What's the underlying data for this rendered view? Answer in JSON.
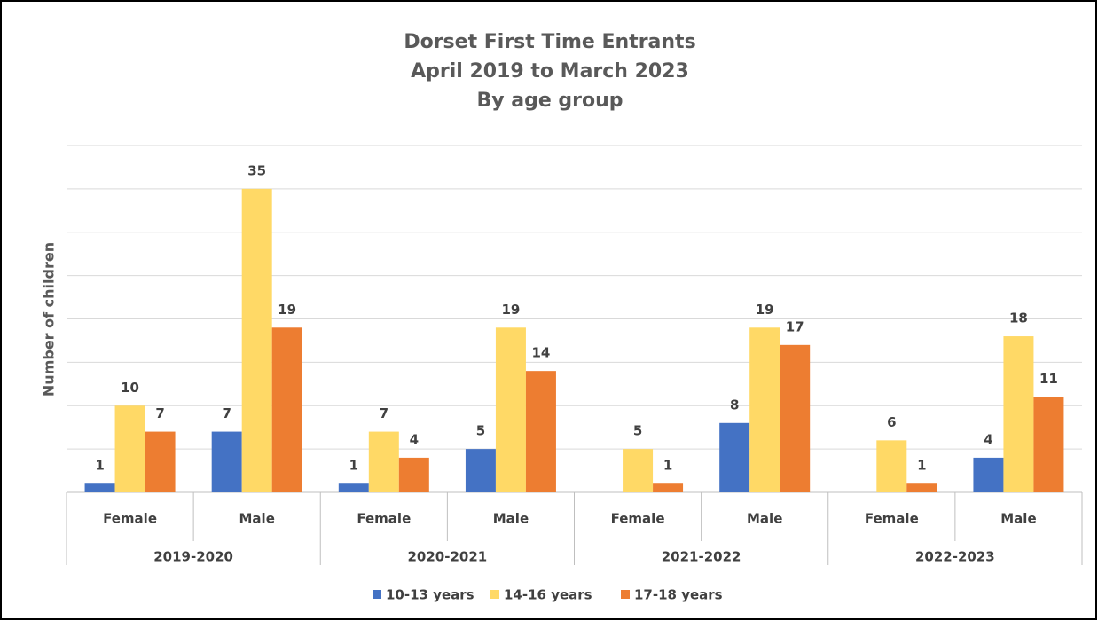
{
  "chart_data": {
    "type": "bar",
    "title": [
      "Dorset First Time Entrants",
      "April 2019 to March 2023",
      "By age group"
    ],
    "ylabel": "Number of children",
    "category_groups": [
      "2019-2020",
      "2020-2021",
      "2021-2022",
      "2022-2023"
    ],
    "categories": [
      "Female",
      "Male",
      "Female",
      "Male",
      "Female",
      "Male",
      "Female",
      "Male"
    ],
    "series": [
      {
        "name": "10-13 years",
        "color": "#4472c4",
        "values": [
          1,
          7,
          1,
          5,
          null,
          8,
          null,
          4
        ]
      },
      {
        "name": "14-16 years",
        "color": "#ffd966",
        "values": [
          10,
          35,
          7,
          19,
          5,
          19,
          6,
          18
        ]
      },
      {
        "name": "17-18 years",
        "color": "#ed7d31",
        "values": [
          7,
          19,
          4,
          14,
          1,
          17,
          1,
          11
        ]
      }
    ],
    "ylim": [
      0,
      40
    ],
    "yticks": [
      0,
      5,
      10,
      15,
      20,
      25,
      30,
      35,
      40
    ],
    "grid": true,
    "legend": "bottom"
  }
}
